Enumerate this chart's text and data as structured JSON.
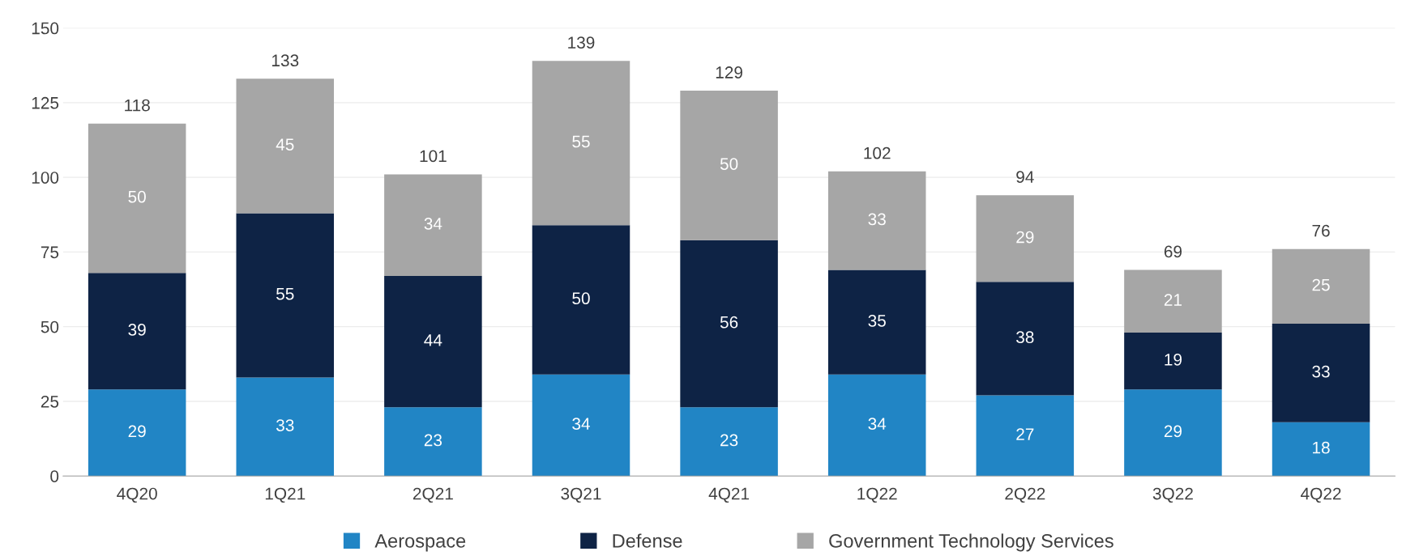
{
  "chart_data": {
    "type": "bar",
    "stacked": true,
    "categories": [
      "4Q20",
      "1Q21",
      "2Q21",
      "3Q21",
      "4Q21",
      "1Q22",
      "2Q22",
      "3Q22",
      "4Q22"
    ],
    "series": [
      {
        "name": "Aerospace",
        "color": "#2185c5",
        "values": [
          29,
          33,
          23,
          34,
          23,
          34,
          27,
          29,
          18
        ]
      },
      {
        "name": "Defense",
        "color": "#0e2345",
        "values": [
          39,
          55,
          44,
          50,
          56,
          35,
          38,
          19,
          33
        ]
      },
      {
        "name": "Government Technology Services",
        "color": "#a6a6a6",
        "values": [
          50,
          45,
          34,
          55,
          50,
          33,
          29,
          21,
          25
        ]
      }
    ],
    "totals": [
      "118",
      "133",
      "101",
      "139",
      "129",
      "102",
      "94",
      "69",
      "76"
    ],
    "data_labels": true,
    "ylim": [
      0,
      150
    ],
    "yticks": [
      0,
      25,
      50,
      75,
      100,
      125,
      150
    ],
    "grid": "y",
    "legend": "bottom"
  }
}
